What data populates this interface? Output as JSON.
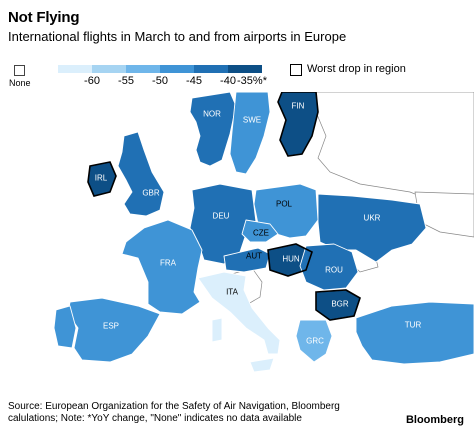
{
  "title": "Not Flying",
  "subtitle": "International flights in March to and from airports in Europe",
  "legend": {
    "none_label": "None",
    "scale_colors": [
      "#dbeffc",
      "#a6d4f2",
      "#6fb6ea",
      "#3f94d6",
      "#2070b4",
      "#0d4f86"
    ],
    "ticks": [
      "-60",
      "-55",
      "-50",
      "-45",
      "-40",
      "-35%*"
    ],
    "worst_drop_label": "Worst drop in region"
  },
  "countries": [
    {
      "code": "NOR",
      "color": "#2070b4"
    },
    {
      "code": "SWE",
      "color": "#3f94d6"
    },
    {
      "code": "FIN",
      "color": "#0d4f86"
    },
    {
      "code": "IRL",
      "color": "#0d4f86"
    },
    {
      "code": "GBR",
      "color": "#2070b4"
    },
    {
      "code": "POL",
      "color": "#3f94d6"
    },
    {
      "code": "DEU",
      "color": "#2070b4"
    },
    {
      "code": "UKR",
      "color": "#2070b4"
    },
    {
      "code": "CZE",
      "color": "#3f94d6"
    },
    {
      "code": "FRA",
      "color": "#3f94d6"
    },
    {
      "code": "AUT",
      "color": "#2070b4"
    },
    {
      "code": "HUN",
      "color": "#0d4f86"
    },
    {
      "code": "ROU",
      "color": "#2070b4"
    },
    {
      "code": "ITA",
      "color": "#dbeffc"
    },
    {
      "code": "BGR",
      "color": "#0d4f86"
    },
    {
      "code": "ESP",
      "color": "#3f94d6"
    },
    {
      "code": "TUR",
      "color": "#3f94d6"
    },
    {
      "code": "GRC",
      "color": "#6fb6ea"
    }
  ],
  "source_line1": "Source: European Organization for the Safety of Air Navigation, Bloomberg",
  "source_line2": "calulations; Note: *YoY change, \"None\" indicates no data available",
  "brand": "Bloomberg"
}
